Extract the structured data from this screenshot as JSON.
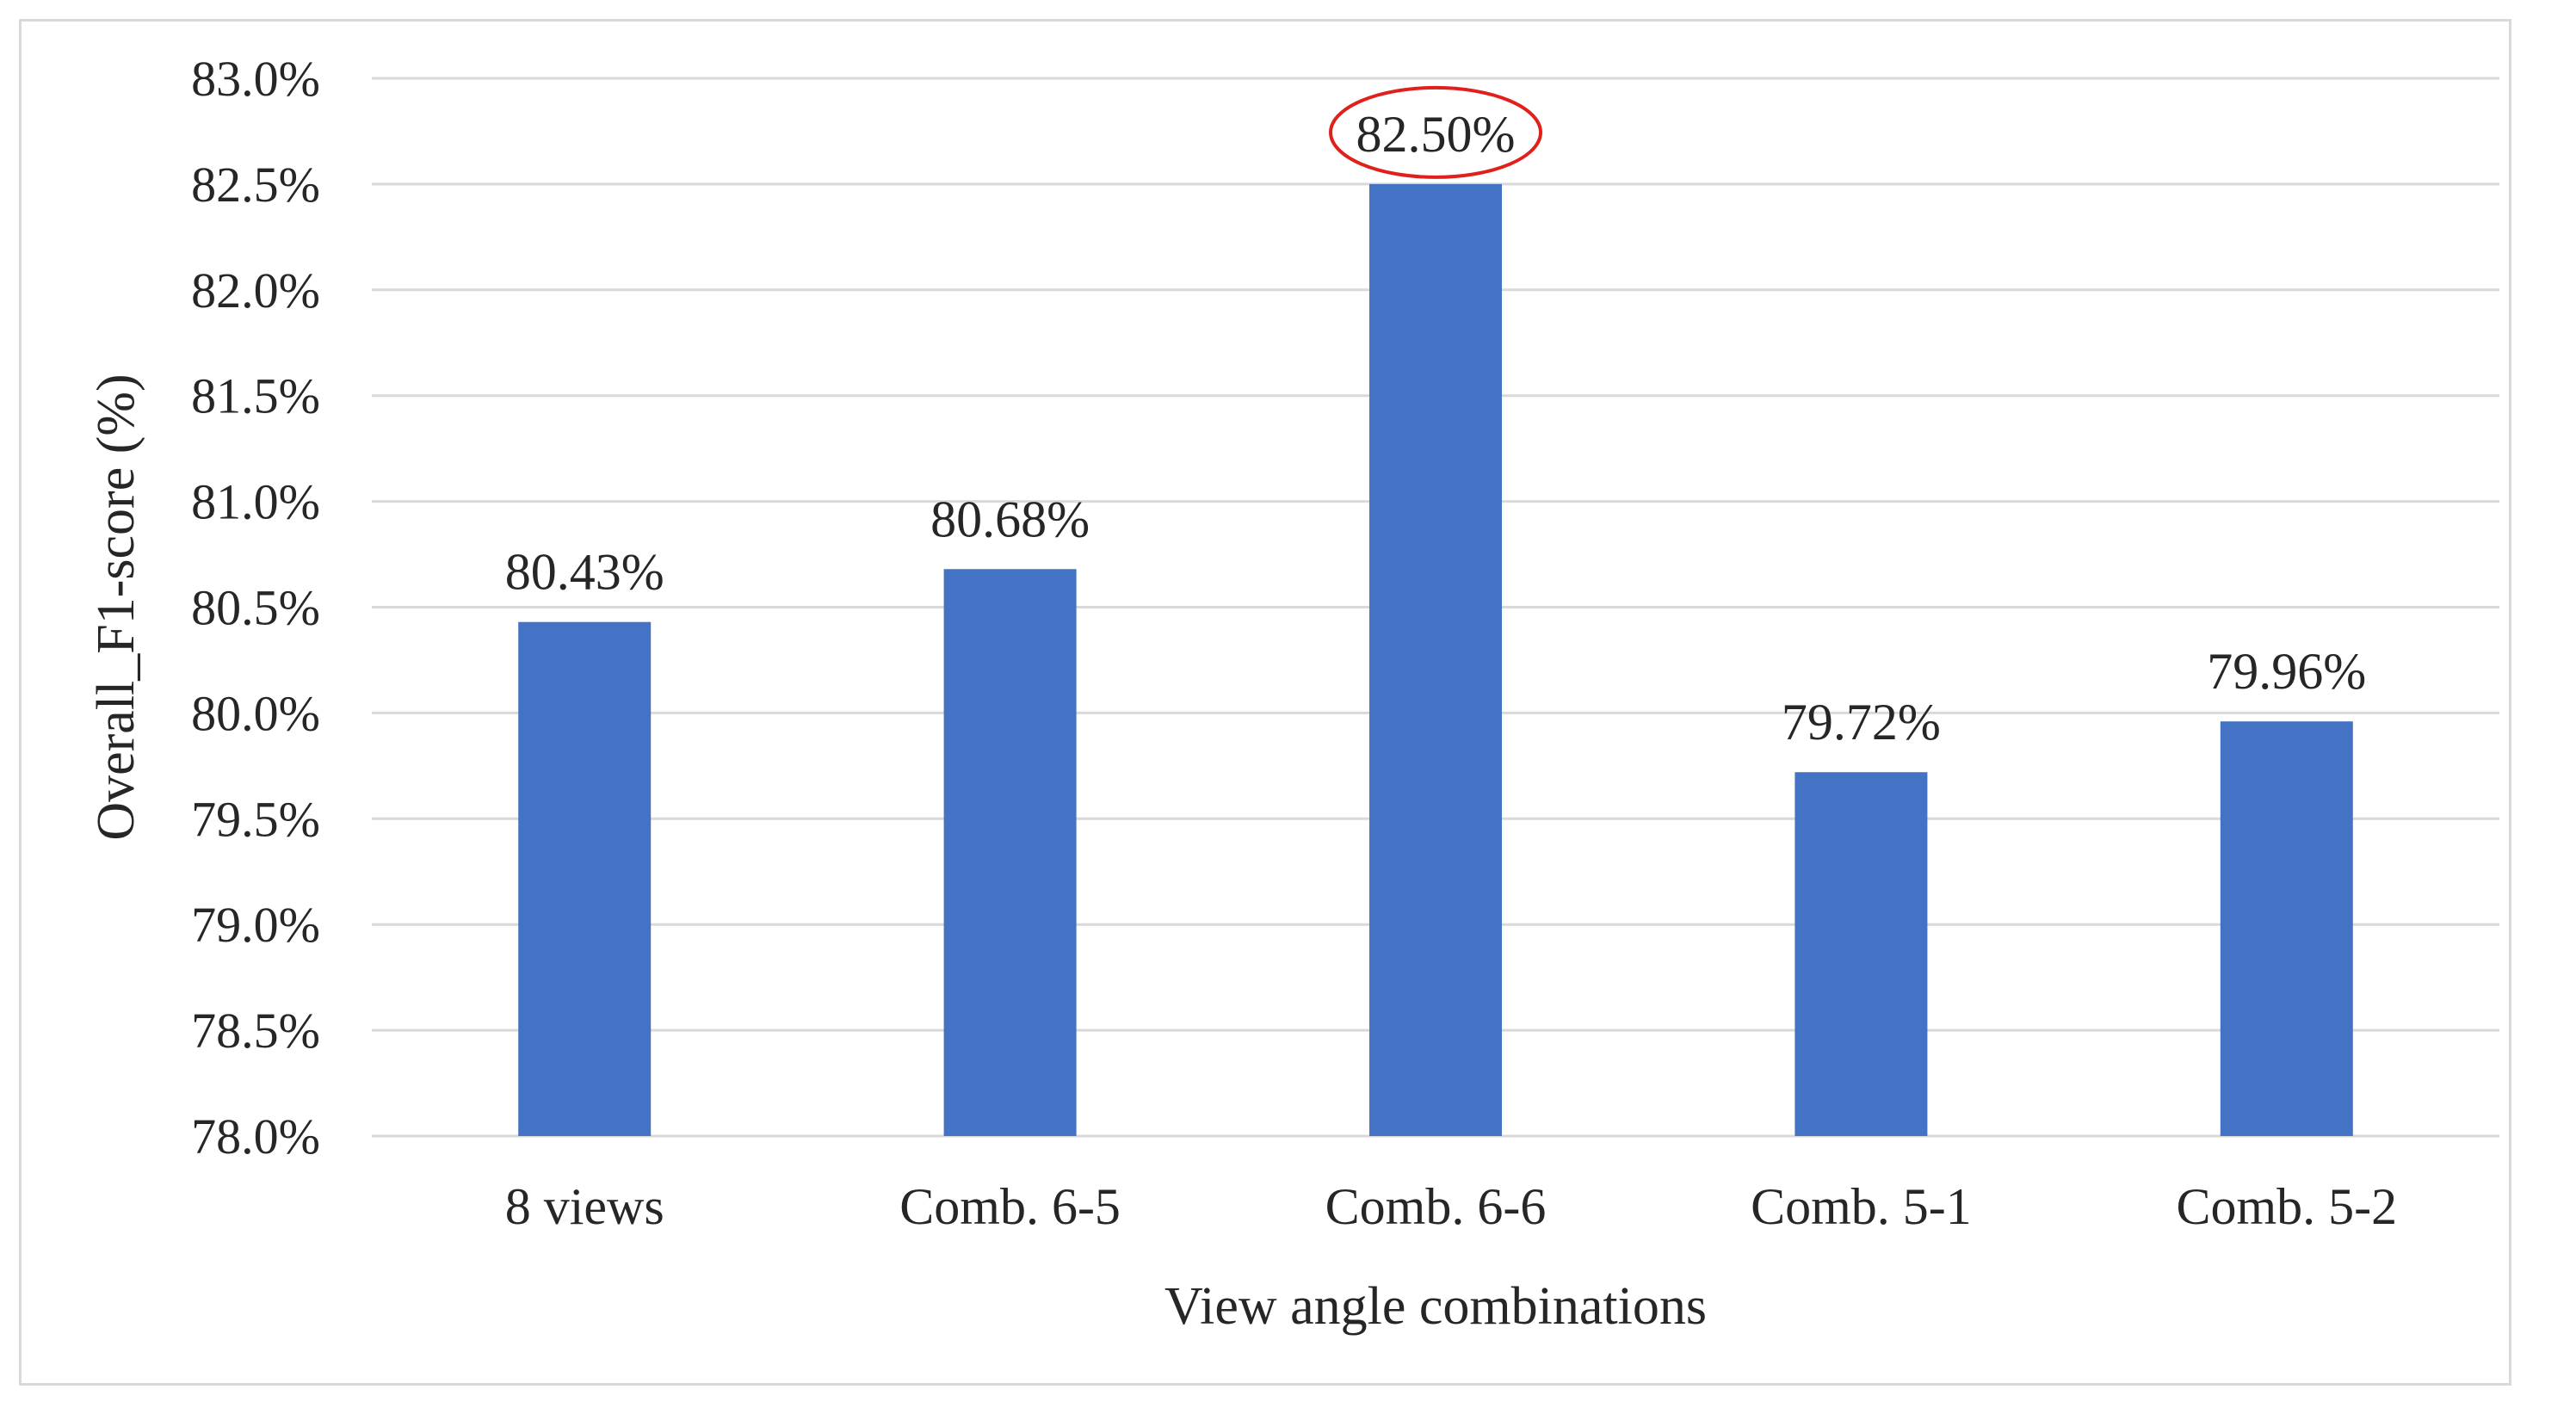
{
  "chart_data": {
    "type": "bar",
    "title": "",
    "xlabel": "View angle combinations",
    "ylabel": "Overall_F1-score (%)",
    "categories": [
      "8 views",
      "Comb. 6-5",
      "Comb. 6-6",
      "Comb. 5-1",
      "Comb. 5-2"
    ],
    "values": [
      80.43,
      80.68,
      82.5,
      79.72,
      79.96
    ],
    "value_labels": [
      "80.43%",
      "80.68%",
      "82.50%",
      "79.72%",
      "79.96%"
    ],
    "ylim": [
      78.0,
      83.0
    ],
    "yticks": [
      78.0,
      78.5,
      79.0,
      79.5,
      80.0,
      80.5,
      81.0,
      81.5,
      82.0,
      82.5,
      83.0
    ],
    "ytick_labels": [
      "78.0%",
      "78.5%",
      "79.0%",
      "79.5%",
      "80.0%",
      "80.5%",
      "81.0%",
      "81.5%",
      "82.0%",
      "82.5%",
      "83.0%"
    ],
    "grid": true,
    "legend": "none",
    "highlighted_category": "Comb. 6-6",
    "colors": {
      "bar": "#4472C4",
      "grid": "#d9d9d9",
      "highlight_ring": "#e0201b",
      "text": "#262626"
    }
  }
}
